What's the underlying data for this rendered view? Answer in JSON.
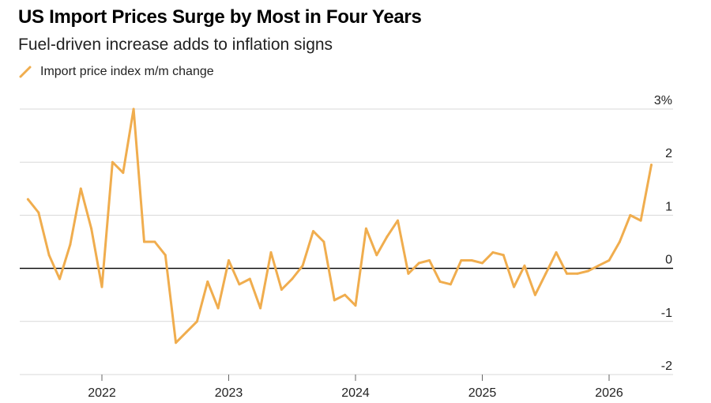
{
  "chart_data": {
    "type": "line",
    "title": "US Import Prices Surge by Most in Four Years",
    "subtitle": "Fuel-driven increase adds to inflation signs",
    "legend": [
      {
        "label": "Import price index m/m change",
        "color": "#f0ad4e"
      }
    ],
    "yticks": [
      "3%",
      "2",
      "1",
      "0",
      "-1",
      "-2"
    ],
    "ylim": [
      -2,
      3
    ],
    "xticks": [
      "2022",
      "2023",
      "2024",
      "2025",
      "2026"
    ],
    "grid": "horizontal",
    "legend_position": "top-left",
    "series": [
      {
        "name": "Import price index m/m change",
        "color": "#f0ad4e",
        "x": [
          "2021-06",
          "2021-07",
          "2021-08",
          "2021-09",
          "2021-10",
          "2021-11",
          "2021-12",
          "2022-01",
          "2022-02",
          "2022-03",
          "2022-04",
          "2022-05",
          "2022-06",
          "2022-07",
          "2022-08",
          "2022-09",
          "2022-10",
          "2022-11",
          "2022-12",
          "2023-01",
          "2023-02",
          "2023-03",
          "2023-04",
          "2023-05",
          "2023-06",
          "2023-07",
          "2023-08",
          "2023-09",
          "2023-10",
          "2023-11",
          "2023-12",
          "2024-01",
          "2024-02",
          "2024-03",
          "2024-04",
          "2024-05",
          "2024-06",
          "2024-07",
          "2024-08",
          "2024-09",
          "2024-10",
          "2024-11",
          "2024-12",
          "2025-01",
          "2025-02",
          "2025-03",
          "2025-04",
          "2025-05",
          "2025-06",
          "2025-07",
          "2025-08",
          "2025-09",
          "2025-10",
          "2025-11",
          "2025-12",
          "2026-01",
          "2026-02",
          "2026-03",
          "2026-04",
          "2026-05"
        ],
        "values": [
          1.3,
          1.05,
          0.25,
          -0.2,
          0.45,
          1.5,
          0.75,
          -0.35,
          2.0,
          1.8,
          3.0,
          0.5,
          0.5,
          0.25,
          -1.4,
          -1.2,
          -1.0,
          -0.25,
          -0.75,
          0.15,
          -0.3,
          -0.2,
          -0.75,
          0.3,
          -0.4,
          -0.2,
          0.05,
          0.7,
          0.5,
          -0.6,
          -0.5,
          -0.7,
          0.75,
          0.25,
          0.6,
          0.9,
          -0.1,
          0.1,
          0.15,
          -0.25,
          -0.3,
          0.15,
          0.15,
          0.1,
          0.3,
          0.25,
          -0.35,
          0.05,
          -0.5,
          -0.1,
          0.3,
          -0.1,
          -0.1,
          -0.05,
          0.05,
          0.15,
          0.5,
          1.0,
          0.9,
          1.95
        ]
      }
    ]
  }
}
